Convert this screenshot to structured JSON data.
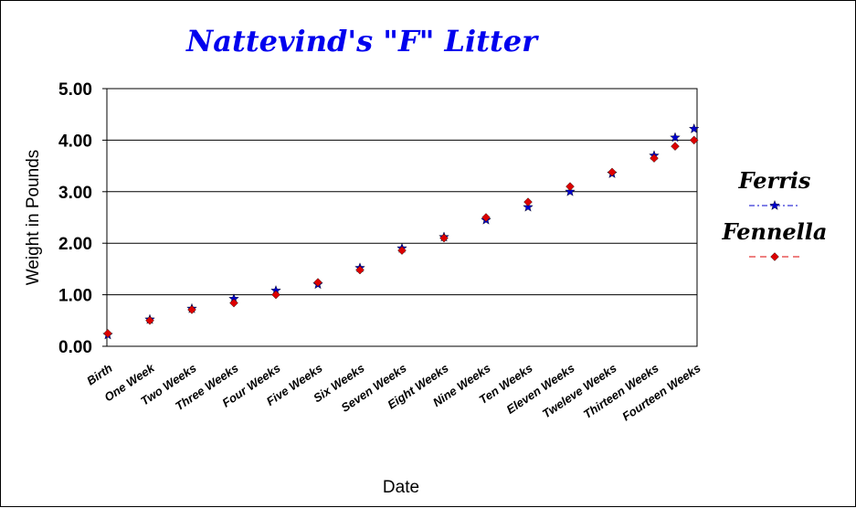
{
  "chart_data": {
    "type": "scatter",
    "title": "Nattevind's \"F\" Litter",
    "xlabel": "Date",
    "ylabel": "Weight in Pounds",
    "ylim": [
      0,
      5
    ],
    "yticks": [
      "0.00",
      "1.00",
      "2.00",
      "3.00",
      "4.00",
      "5.00"
    ],
    "categories": [
      "Birth",
      "One Week",
      "Two Weeks",
      "Three Weeks",
      "Four Weeks",
      "Five Weeks",
      "Six Weeks",
      "Seven Weeks",
      "Eight Weeks",
      "Nine Weeks",
      "Ten Weeks",
      "Eleven Weeks",
      "Tweleve Weeks",
      "Thirteen Weeks",
      "Fourteen Weeks"
    ],
    "grid": true,
    "legend_position": "right",
    "series": [
      {
        "name": "Ferris",
        "color": "#0000cc",
        "marker": "star",
        "points": [
          {
            "x": 0,
            "y": 0.22
          },
          {
            "x": 1,
            "y": 0.52
          },
          {
            "x": 2,
            "y": 0.73
          },
          {
            "x": 3,
            "y": 0.92
          },
          {
            "x": 4,
            "y": 1.08
          },
          {
            "x": 5,
            "y": 1.2
          },
          {
            "x": 6,
            "y": 1.52
          },
          {
            "x": 7,
            "y": 1.9
          },
          {
            "x": 8,
            "y": 2.12
          },
          {
            "x": 9,
            "y": 2.45
          },
          {
            "x": 10,
            "y": 2.7
          },
          {
            "x": 11,
            "y": 3.0
          },
          {
            "x": 12,
            "y": 3.35
          },
          {
            "x": 13,
            "y": 3.7
          },
          {
            "x": 13.5,
            "y": 4.05
          },
          {
            "x": 13.95,
            "y": 4.22
          }
        ]
      },
      {
        "name": "Fennella",
        "color": "#dd0000",
        "marker": "diamond",
        "points": [
          {
            "x": 0,
            "y": 0.25
          },
          {
            "x": 1,
            "y": 0.5
          },
          {
            "x": 2,
            "y": 0.71
          },
          {
            "x": 3,
            "y": 0.84
          },
          {
            "x": 4,
            "y": 1.0
          },
          {
            "x": 5,
            "y": 1.24
          },
          {
            "x": 6,
            "y": 1.48
          },
          {
            "x": 7,
            "y": 1.86
          },
          {
            "x": 8,
            "y": 2.1
          },
          {
            "x": 9,
            "y": 2.5
          },
          {
            "x": 10,
            "y": 2.8
          },
          {
            "x": 11,
            "y": 3.1
          },
          {
            "x": 12,
            "y": 3.38
          },
          {
            "x": 13,
            "y": 3.65
          },
          {
            "x": 13.5,
            "y": 3.88
          },
          {
            "x": 13.95,
            "y": 4.0
          }
        ]
      }
    ]
  }
}
